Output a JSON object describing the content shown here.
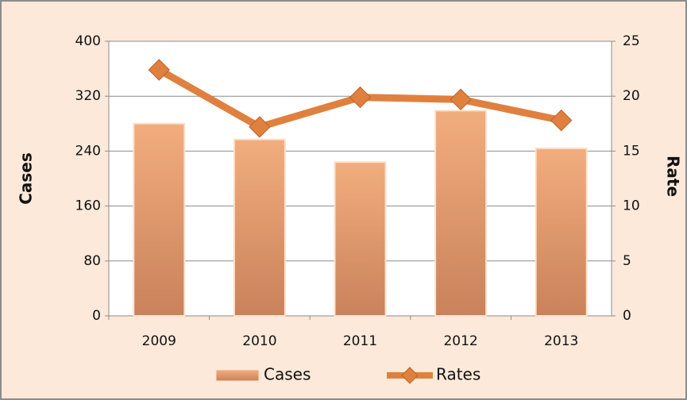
{
  "chart_data": {
    "type": "bar",
    "y_label": "Cases",
    "y2_label": "Rate",
    "categories": [
      "2009",
      "2010",
      "2011",
      "2012",
      "2013"
    ],
    "series": [
      {
        "name": "Cases",
        "type": "bar",
        "color": "#f2ad7e",
        "values": [
          280,
          257,
          224,
          299,
          244
        ]
      },
      {
        "name": "Rates",
        "type": "line",
        "axis": "y2",
        "color": "#e0803f",
        "values": [
          22.4,
          17.2,
          19.9,
          19.7,
          17.8
        ]
      }
    ],
    "ylim": [
      0,
      400
    ],
    "yticks": [
      0,
      80,
      160,
      240,
      320,
      400
    ],
    "y2lim": [
      0,
      25
    ],
    "y2ticks": [
      0,
      5,
      10,
      15,
      20,
      25
    ],
    "grid": true,
    "legend": "bottom"
  }
}
